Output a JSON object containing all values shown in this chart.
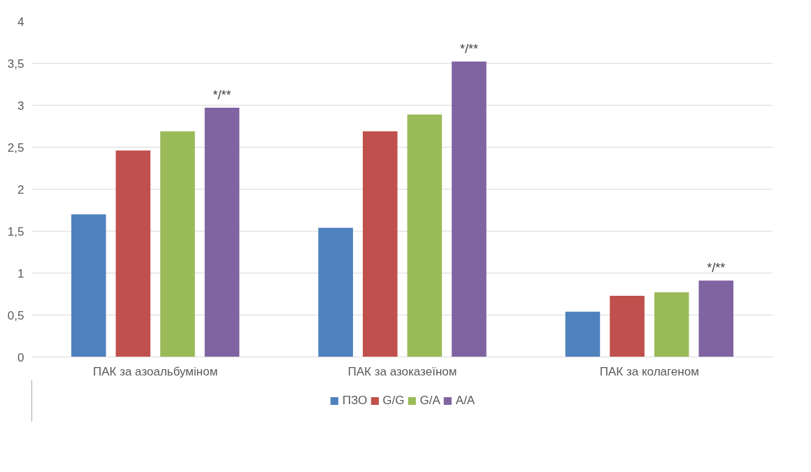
{
  "chart_data": {
    "type": "bar",
    "categories": [
      "ПАК за азоальбуміном",
      "ПАК за азоказеїном",
      "ПАК за колагеном"
    ],
    "series": [
      {
        "name": "ПЗО",
        "color": "#4f81bd",
        "values": [
          1.7,
          1.54,
          0.54
        ]
      },
      {
        "name": "G/G",
        "color": "#c0504d",
        "values": [
          2.46,
          2.69,
          0.73
        ]
      },
      {
        "name": "G/A",
        "color": "#9bbb59",
        "values": [
          2.69,
          2.89,
          0.77
        ]
      },
      {
        "name": "A/A",
        "color": "#8064a2",
        "values": [
          2.97,
          3.52,
          0.91
        ]
      }
    ],
    "ylim": [
      0,
      4
    ],
    "yticks": [
      0,
      {
        "value": 0.5,
        "label": "0,5"
      },
      1,
      {
        "value": 1.5,
        "label": "1,5"
      },
      2,
      {
        "value": 2.5,
        "label": "2,5"
      },
      3,
      {
        "value": 3.5,
        "label": "3,5"
      },
      4
    ],
    "grid": "y",
    "legend": "bottom",
    "annotations": [
      "*/**",
      "*/**",
      "*/**"
    ]
  }
}
